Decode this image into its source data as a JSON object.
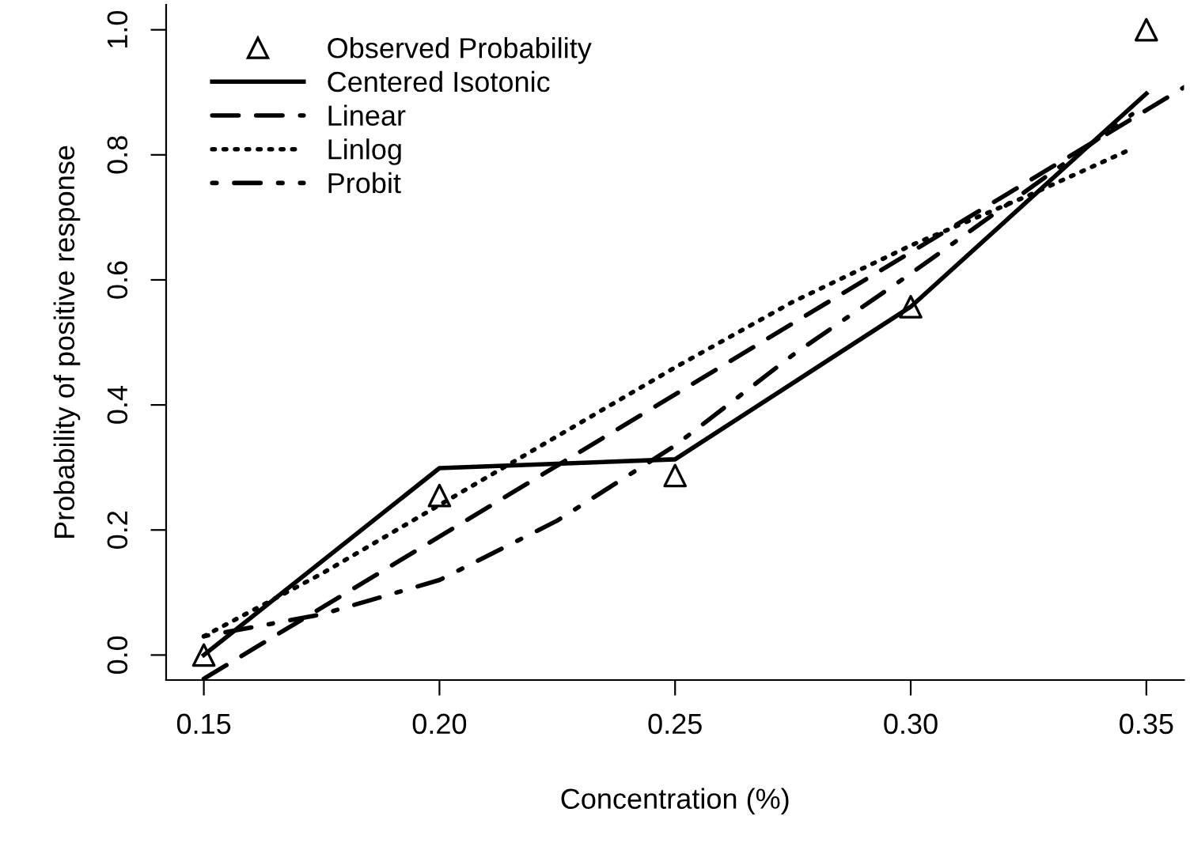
{
  "chart_data": {
    "type": "line",
    "xlabel": "Concentration (%)",
    "ylabel": "Probability of positive response",
    "xlim": [
      0.142,
      0.358
    ],
    "ylim": [
      -0.04,
      1.04
    ],
    "xticks": [
      {
        "value": 0.15,
        "label": "0.15"
      },
      {
        "value": 0.2,
        "label": "0.20"
      },
      {
        "value": 0.25,
        "label": "0.25"
      },
      {
        "value": 0.3,
        "label": "0.30"
      },
      {
        "value": 0.35,
        "label": "0.35"
      }
    ],
    "yticks": [
      {
        "value": 0,
        "label": "0.0"
      },
      {
        "value": 0.2,
        "label": "0.2"
      },
      {
        "value": 0.4,
        "label": "0.4"
      },
      {
        "value": 0.6,
        "label": "0.6"
      },
      {
        "value": 0.8,
        "label": "0.8"
      },
      {
        "value": 1.0,
        "label": "1.0"
      }
    ],
    "grid": false,
    "legend": "top left",
    "series": [
      {
        "name": "Observed Probability",
        "type": "scatter",
        "marker": "triangle",
        "color": "#000000",
        "x": [
          0.15,
          0.2,
          0.25,
          0.3,
          0.35
        ],
        "values": [
          0.0,
          0.255,
          0.287,
          0.557,
          1.0
        ]
      },
      {
        "name": "Centered Isotonic",
        "type": "line",
        "line_style": "solid",
        "color": "#000000",
        "x": [
          0.15,
          0.2,
          0.25,
          0.3,
          0.35
        ],
        "values": [
          0.0,
          0.299,
          0.313,
          0.557,
          0.898
        ]
      },
      {
        "name": "Linear",
        "type": "line",
        "line_style": "dashed",
        "color": "#000000",
        "x": [
          0.15,
          0.358
        ],
        "values": [
          -0.038,
          0.908
        ]
      },
      {
        "name": "Linlog",
        "type": "line",
        "line_style": "dotted",
        "color": "#000000",
        "x": [
          0.15,
          0.175,
          0.2,
          0.225,
          0.25,
          0.275,
          0.3,
          0.325,
          0.347
        ],
        "values": [
          0.03,
          0.13,
          0.24,
          0.35,
          0.46,
          0.565,
          0.655,
          0.735,
          0.81
        ]
      },
      {
        "name": "Probit",
        "type": "line",
        "line_style": "dashdot",
        "color": "#000000",
        "x": [
          0.15,
          0.175,
          0.2,
          0.225,
          0.25,
          0.275,
          0.3,
          0.325,
          0.347
        ],
        "values": [
          0.03,
          0.065,
          0.12,
          0.215,
          0.335,
          0.48,
          0.61,
          0.745,
          0.865
        ]
      }
    ]
  }
}
